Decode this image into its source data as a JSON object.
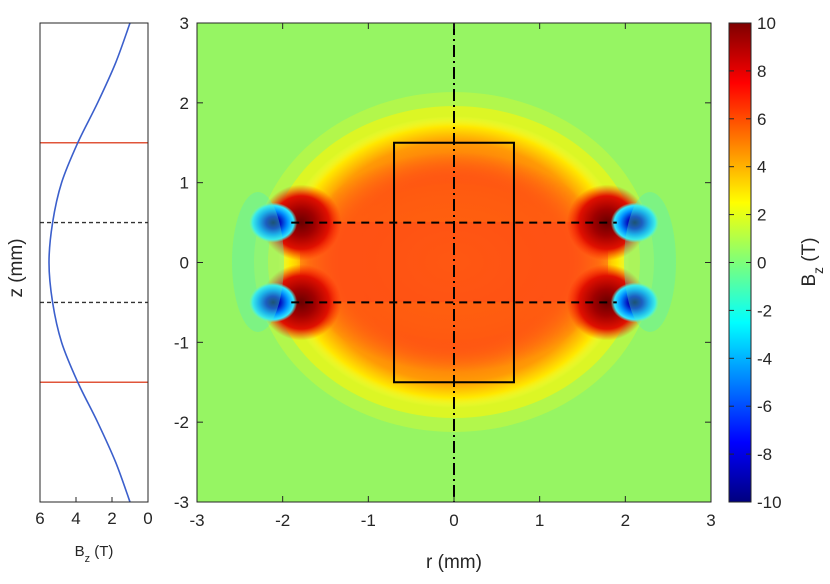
{
  "chart_data": [
    {
      "type": "line",
      "panel": "left-profile",
      "xlabel": "B_z (T)",
      "ylabel": "z (mm)",
      "xlim": [
        0,
        6
      ],
      "x_reversed": true,
      "ylim": [
        -3,
        3
      ],
      "xticks": [
        "6",
        "4",
        "2",
        "0"
      ],
      "grid": false,
      "series": [
        {
          "color": "#3b5fcc",
          "z": [
            -3,
            -2.5,
            -2,
            -1.5,
            -1,
            -0.5,
            0,
            0.5,
            1,
            1.5,
            2,
            2.5,
            3
          ],
          "bz": [
            1.0,
            1.8,
            2.8,
            3.9,
            4.8,
            5.3,
            5.5,
            5.3,
            4.8,
            3.9,
            2.8,
            1.8,
            1.0
          ]
        }
      ],
      "hlines": [
        {
          "z": 1.5,
          "color": "#e0553a",
          "style": "solid"
        },
        {
          "z": -1.5,
          "color": "#e0553a",
          "style": "solid"
        },
        {
          "z": 0.5,
          "color": "#333333",
          "style": "dashed"
        },
        {
          "z": -0.5,
          "color": "#333333",
          "style": "dashed"
        }
      ]
    },
    {
      "type": "heatmap",
      "panel": "main-field-map",
      "xlabel": "r (mm)",
      "ylabel": "",
      "xlim": [
        -3,
        3
      ],
      "ylim": [
        -3,
        3
      ],
      "xticks": [
        "-3",
        "-2",
        "-1",
        "0",
        "1",
        "2",
        "3"
      ],
      "yticks": [
        "3",
        "2",
        "1",
        "0",
        "-1",
        "-2",
        "-3"
      ],
      "colormap": "jet",
      "clim": [
        -10,
        10
      ],
      "colorbar": {
        "label": "B_z (T)",
        "ticks": [
          "10",
          "8",
          "6",
          "4",
          "2",
          "0",
          "-2",
          "-4",
          "-6",
          "-8",
          "-10"
        ],
        "placement": "right"
      },
      "coils": [
        {
          "r": 1.9,
          "z": 0.5
        },
        {
          "r": -1.9,
          "z": 0.5
        },
        {
          "r": 1.9,
          "z": -0.5
        },
        {
          "r": -1.9,
          "z": -0.5
        }
      ],
      "sample_rectangle": {
        "r_min": -0.7,
        "r_max": 0.7,
        "z_min": -1.5,
        "z_max": 1.5
      },
      "dashed_lines_z": [
        0.5,
        -0.5
      ],
      "axis_line": {
        "r": 0,
        "style": "dash-dot"
      },
      "grid": false
    }
  ]
}
